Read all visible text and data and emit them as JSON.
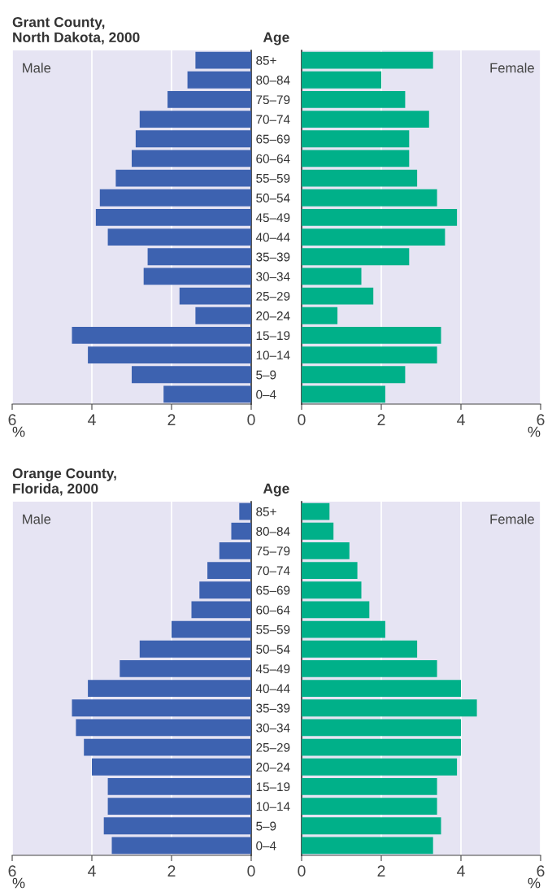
{
  "chart_data": [
    {
      "type": "bar",
      "orientation": "horizontal",
      "title": "Grant County,\nNorth Dakota, 2000",
      "ylabel": "Age",
      "xlabel": "%",
      "annotations": [
        "Male"
      ],
      "categories": [
        "85+",
        "80–84",
        "75–79",
        "70–74",
        "65–69",
        "60–64",
        "55–59",
        "50–54",
        "45–49",
        "40–44",
        "35–39",
        "30–34",
        "25–29",
        "20–24",
        "15–19",
        "10–14",
        "5–9",
        "0–4"
      ],
      "series": [
        {
          "color": "#3d62b0",
          "values": [
            1.4,
            1.6,
            2.1,
            2.8,
            2.9,
            3.0,
            3.4,
            3.8,
            3.9,
            3.6,
            2.6,
            2.7,
            1.8,
            1.4,
            4.5,
            4.1,
            3.0,
            2.2
          ]
        }
      ],
      "xlim": [
        6,
        0
      ],
      "xticks": [
        6,
        4,
        2,
        0
      ],
      "grid": "x"
    },
    {
      "type": "bar",
      "orientation": "horizontal",
      "xlabel": "%",
      "annotations": [
        "Female"
      ],
      "tick_labels": "x",
      "categories": [
        null,
        null,
        null,
        null,
        null,
        null,
        null,
        null,
        null,
        null,
        null,
        null,
        null,
        null,
        null,
        null,
        null,
        null
      ],
      "series": [
        {
          "color": "#00b089",
          "values": [
            3.3,
            2.0,
            2.6,
            3.2,
            2.7,
            2.7,
            2.9,
            3.4,
            3.9,
            3.6,
            2.7,
            1.5,
            1.8,
            0.9,
            3.5,
            3.4,
            2.6,
            2.1
          ]
        }
      ],
      "xlim": [
        0,
        6
      ],
      "xticks": [
        0,
        2,
        4,
        6
      ],
      "grid": "x"
    },
    {
      "type": "bar",
      "orientation": "horizontal",
      "title": "Orange County,\nFlorida, 2000",
      "ylabel": "Age",
      "xlabel": "%",
      "annotations": [
        "Male"
      ],
      "categories": [
        "85+",
        "80–84",
        "75–79",
        "70–74",
        "65–69",
        "60–64",
        "55–59",
        "50–54",
        "45–49",
        "40–44",
        "35–39",
        "30–34",
        "25–29",
        "20–24",
        "15–19",
        "10–14",
        "5–9",
        "0–4"
      ],
      "series": [
        {
          "color": "#3d62b0",
          "values": [
            0.3,
            0.5,
            0.8,
            1.1,
            1.3,
            1.5,
            2.0,
            2.8,
            3.3,
            4.1,
            4.5,
            4.4,
            4.2,
            4.0,
            3.6,
            3.6,
            3.7,
            3.5
          ]
        }
      ],
      "xlim": [
        6,
        0
      ],
      "xticks": [
        6,
        4,
        2,
        0
      ],
      "grid": "x"
    },
    {
      "type": "bar",
      "orientation": "horizontal",
      "xlabel": "%",
      "annotations": [
        "Female"
      ],
      "tick_labels": "x",
      "categories": [
        null,
        null,
        null,
        null,
        null,
        null,
        null,
        null,
        null,
        null,
        null,
        null,
        null,
        null,
        null,
        null,
        null,
        null
      ],
      "series": [
        {
          "color": "#00b089",
          "values": [
            0.7,
            0.8,
            1.2,
            1.4,
            1.5,
            1.7,
            2.1,
            2.9,
            3.4,
            4.0,
            4.4,
            4.0,
            4.0,
            3.9,
            3.4,
            3.4,
            3.5,
            3.3
          ]
        }
      ],
      "xlim": [
        0,
        6
      ],
      "xticks": [
        0,
        2,
        4,
        6
      ],
      "grid": "x"
    }
  ]
}
